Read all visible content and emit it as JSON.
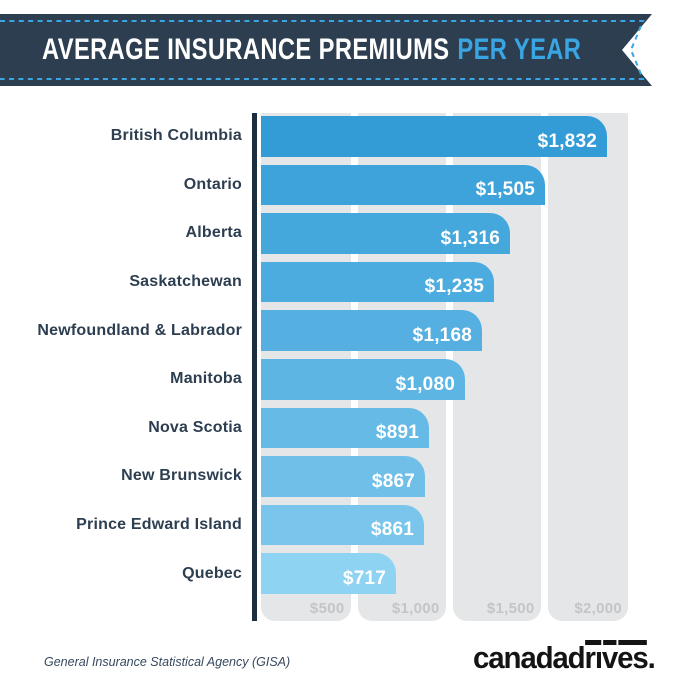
{
  "header": {
    "title_main": "AVERAGE INSURANCE PREMIUMS",
    "title_accent": "PER YEAR",
    "banner_color": "#2d3e50",
    "accent_color": "#3aa5e3"
  },
  "chart_data": {
    "type": "bar",
    "orientation": "horizontal",
    "title": "Average Insurance Premiums Per Year",
    "categories": [
      "British Columbia",
      "Ontario",
      "Alberta",
      "Saskatchewan",
      "Newfoundland & Labrador",
      "Manitoba",
      "Nova Scotia",
      "New Brunswick",
      "Prince Edward Island",
      "Quebec"
    ],
    "values": [
      1832,
      1505,
      1316,
      1235,
      1168,
      1080,
      891,
      867,
      861,
      717
    ],
    "value_labels": [
      "$1,832",
      "$1,505",
      "$1,316",
      "$1,235",
      "$1,168",
      "$1,080",
      "$891",
      "$867",
      "$861",
      "$717"
    ],
    "x_ticks": [
      "$500",
      "$1,000",
      "$1,500",
      "$2,000"
    ],
    "xlim": [
      0,
      2000
    ],
    "bar_colors": [
      "#339cd7",
      "#3da3da",
      "#45a8dc",
      "#4dacdf",
      "#55b0e1",
      "#5db5e4",
      "#66bae6",
      "#6fbfe9",
      "#79c5ec",
      "#8fd3f3"
    ],
    "grid_column_color": "#e5e6e7",
    "tick_label_color": "#c2c6c9",
    "axis_line_color": "#1c2f41"
  },
  "footer": {
    "source": "General Insurance Statistical Agency (GISA)",
    "logo_text": "canadadrives."
  }
}
